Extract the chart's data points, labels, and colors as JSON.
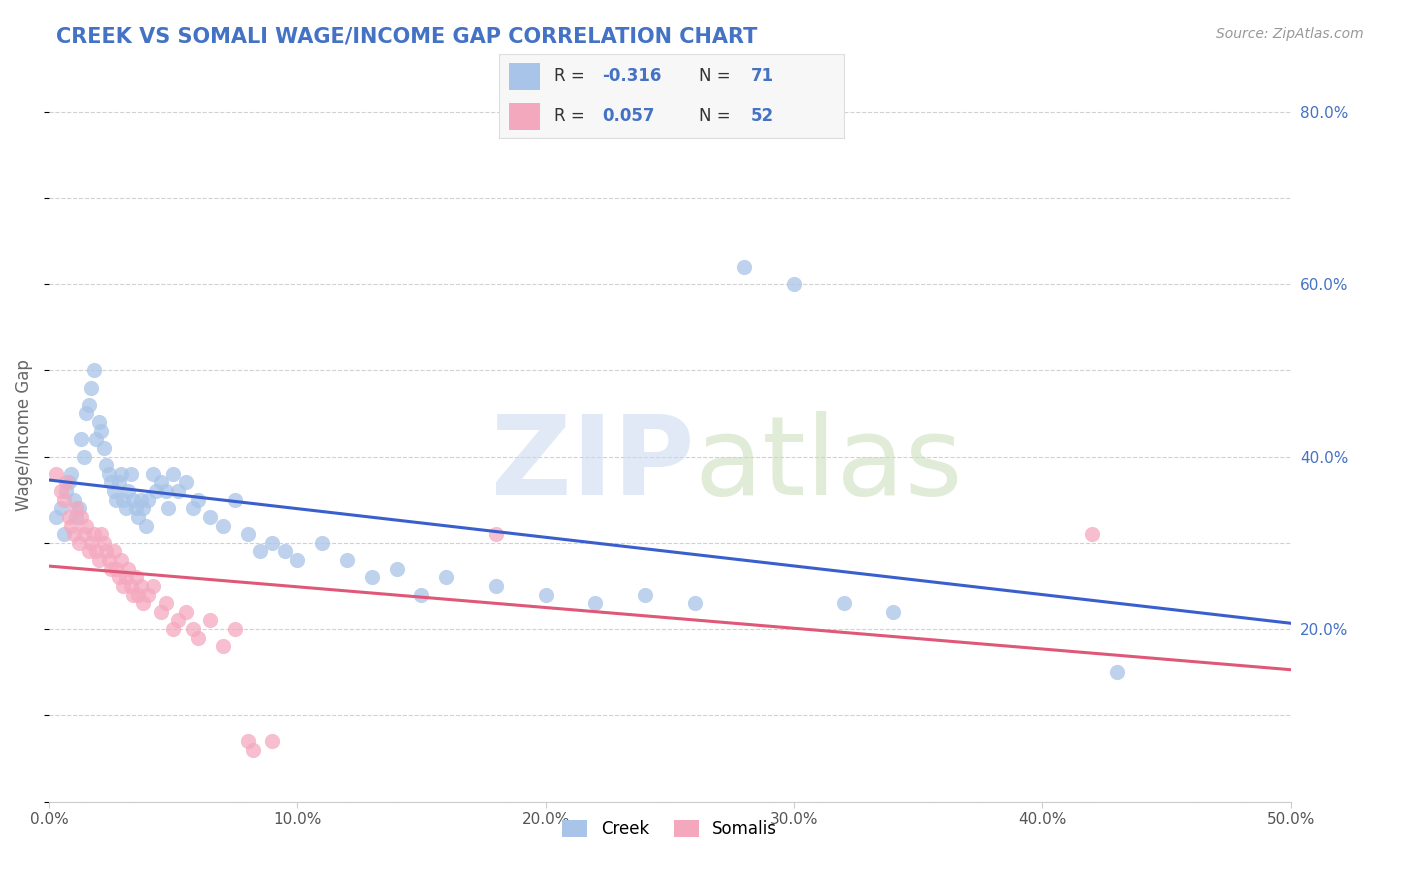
{
  "title": "CREEK VS SOMALI WAGE/INCOME GAP CORRELATION CHART",
  "source": "Source: ZipAtlas.com",
  "ylabel": "Wage/Income Gap",
  "xlim": [
    0.0,
    0.5
  ],
  "ylim": [
    0.0,
    0.85
  ],
  "xtick_vals": [
    0.0,
    0.1,
    0.2,
    0.3,
    0.4,
    0.5
  ],
  "xtick_labels": [
    "0.0%",
    "",
    "",
    "",
    "",
    "50.0%"
  ],
  "ytick_vals": [
    0.0,
    0.2,
    0.4,
    0.6,
    0.8
  ],
  "ytick_labels_right": [
    "",
    "20.0%",
    "40.0%",
    "60.0%",
    "80.0%"
  ],
  "creek_color": "#a8c4e8",
  "somali_color": "#f4a8be",
  "creek_line_color": "#3a5fcd",
  "somali_line_color": "#e05878",
  "creek_R": -0.316,
  "creek_N": 71,
  "somali_R": 0.057,
  "somali_N": 52,
  "legend_label_creek": "Creek",
  "legend_label_somali": "Somalis",
  "creek_scatter": [
    [
      0.003,
      0.33
    ],
    [
      0.005,
      0.34
    ],
    [
      0.006,
      0.31
    ],
    [
      0.007,
      0.36
    ],
    [
      0.008,
      0.37
    ],
    [
      0.009,
      0.38
    ],
    [
      0.01,
      0.35
    ],
    [
      0.011,
      0.33
    ],
    [
      0.012,
      0.34
    ],
    [
      0.013,
      0.42
    ],
    [
      0.014,
      0.4
    ],
    [
      0.015,
      0.45
    ],
    [
      0.016,
      0.46
    ],
    [
      0.017,
      0.48
    ],
    [
      0.018,
      0.5
    ],
    [
      0.019,
      0.42
    ],
    [
      0.02,
      0.44
    ],
    [
      0.021,
      0.43
    ],
    [
      0.022,
      0.41
    ],
    [
      0.023,
      0.39
    ],
    [
      0.024,
      0.38
    ],
    [
      0.025,
      0.37
    ],
    [
      0.026,
      0.36
    ],
    [
      0.027,
      0.35
    ],
    [
      0.028,
      0.37
    ],
    [
      0.029,
      0.38
    ],
    [
      0.03,
      0.35
    ],
    [
      0.031,
      0.34
    ],
    [
      0.032,
      0.36
    ],
    [
      0.033,
      0.38
    ],
    [
      0.034,
      0.35
    ],
    [
      0.035,
      0.34
    ],
    [
      0.036,
      0.33
    ],
    [
      0.037,
      0.35
    ],
    [
      0.038,
      0.34
    ],
    [
      0.039,
      0.32
    ],
    [
      0.04,
      0.35
    ],
    [
      0.042,
      0.38
    ],
    [
      0.043,
      0.36
    ],
    [
      0.045,
      0.37
    ],
    [
      0.047,
      0.36
    ],
    [
      0.048,
      0.34
    ],
    [
      0.05,
      0.38
    ],
    [
      0.052,
      0.36
    ],
    [
      0.055,
      0.37
    ],
    [
      0.058,
      0.34
    ],
    [
      0.06,
      0.35
    ],
    [
      0.065,
      0.33
    ],
    [
      0.07,
      0.32
    ],
    [
      0.075,
      0.35
    ],
    [
      0.08,
      0.31
    ],
    [
      0.085,
      0.29
    ],
    [
      0.09,
      0.3
    ],
    [
      0.095,
      0.29
    ],
    [
      0.1,
      0.28
    ],
    [
      0.11,
      0.3
    ],
    [
      0.12,
      0.28
    ],
    [
      0.13,
      0.26
    ],
    [
      0.14,
      0.27
    ],
    [
      0.15,
      0.24
    ],
    [
      0.16,
      0.26
    ],
    [
      0.18,
      0.25
    ],
    [
      0.2,
      0.24
    ],
    [
      0.22,
      0.23
    ],
    [
      0.24,
      0.24
    ],
    [
      0.26,
      0.23
    ],
    [
      0.28,
      0.62
    ],
    [
      0.3,
      0.6
    ],
    [
      0.32,
      0.23
    ],
    [
      0.34,
      0.22
    ],
    [
      0.43,
      0.15
    ]
  ],
  "somali_scatter": [
    [
      0.003,
      0.38
    ],
    [
      0.005,
      0.36
    ],
    [
      0.006,
      0.35
    ],
    [
      0.007,
      0.37
    ],
    [
      0.008,
      0.33
    ],
    [
      0.009,
      0.32
    ],
    [
      0.01,
      0.31
    ],
    [
      0.011,
      0.34
    ],
    [
      0.012,
      0.3
    ],
    [
      0.013,
      0.33
    ],
    [
      0.014,
      0.31
    ],
    [
      0.015,
      0.32
    ],
    [
      0.016,
      0.29
    ],
    [
      0.017,
      0.3
    ],
    [
      0.018,
      0.31
    ],
    [
      0.019,
      0.29
    ],
    [
      0.02,
      0.28
    ],
    [
      0.021,
      0.31
    ],
    [
      0.022,
      0.3
    ],
    [
      0.023,
      0.29
    ],
    [
      0.024,
      0.28
    ],
    [
      0.025,
      0.27
    ],
    [
      0.026,
      0.29
    ],
    [
      0.027,
      0.27
    ],
    [
      0.028,
      0.26
    ],
    [
      0.029,
      0.28
    ],
    [
      0.03,
      0.25
    ],
    [
      0.031,
      0.26
    ],
    [
      0.032,
      0.27
    ],
    [
      0.033,
      0.25
    ],
    [
      0.034,
      0.24
    ],
    [
      0.035,
      0.26
    ],
    [
      0.036,
      0.24
    ],
    [
      0.037,
      0.25
    ],
    [
      0.038,
      0.23
    ],
    [
      0.04,
      0.24
    ],
    [
      0.042,
      0.25
    ],
    [
      0.045,
      0.22
    ],
    [
      0.047,
      0.23
    ],
    [
      0.05,
      0.2
    ],
    [
      0.052,
      0.21
    ],
    [
      0.055,
      0.22
    ],
    [
      0.058,
      0.2
    ],
    [
      0.06,
      0.19
    ],
    [
      0.065,
      0.21
    ],
    [
      0.07,
      0.18
    ],
    [
      0.075,
      0.2
    ],
    [
      0.08,
      0.07
    ],
    [
      0.082,
      0.06
    ],
    [
      0.09,
      0.07
    ],
    [
      0.18,
      0.31
    ],
    [
      0.42,
      0.31
    ]
  ],
  "grid_color": "#cccccc",
  "background_color": "#ffffff",
  "title_color": "#4472c4",
  "source_color": "#999999",
  "stat_box_color": "#f0f0f0",
  "stat_text_color": "#4472c4"
}
